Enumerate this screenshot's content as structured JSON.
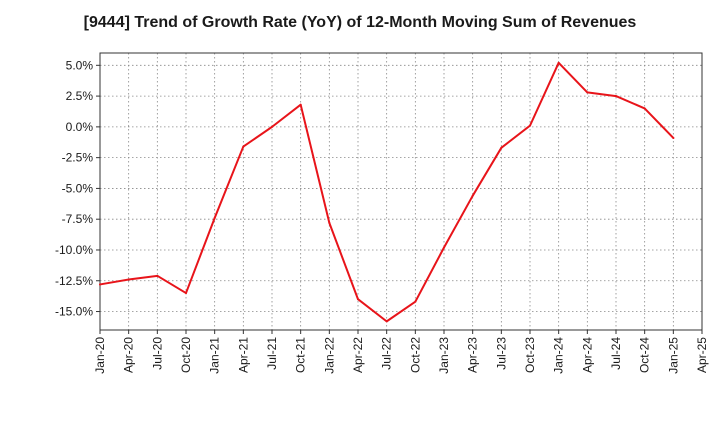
{
  "chart_data": {
    "type": "line",
    "title": "[9444]  Trend of Growth Rate (YoY) of 12-Month Moving Sum of Revenues",
    "xlabel": "",
    "ylabel": "",
    "x_tick_labels": [
      "Jan-20",
      "Apr-20",
      "Jul-20",
      "Oct-20",
      "Jan-21",
      "Apr-21",
      "Jul-21",
      "Oct-21",
      "Jan-22",
      "Apr-22",
      "Jul-22",
      "Oct-22",
      "Jan-23",
      "Apr-23",
      "Jul-23",
      "Oct-23",
      "Jan-24",
      "Apr-24",
      "Jul-24",
      "Oct-24",
      "Jan-25",
      "Apr-25"
    ],
    "y_tick_labels": [
      "5.0%",
      "2.5%",
      "0.0%",
      "-2.5%",
      "-5.0%",
      "-7.5%",
      "-10.0%",
      "-12.5%",
      "-15.0%"
    ],
    "y_ticks": [
      5.0,
      2.5,
      0.0,
      -2.5,
      -5.0,
      -7.5,
      -10.0,
      -12.5,
      -15.0
    ],
    "ylim": [
      -16.5,
      6.0
    ],
    "grid": true,
    "series": [
      {
        "color": "#e8141a",
        "x": [
          "Jan-20",
          "Apr-20",
          "Jul-20",
          "Oct-20",
          "Jan-21",
          "Apr-21",
          "Jul-21",
          "Oct-21",
          "Jan-22",
          "Apr-22",
          "Jul-22",
          "Oct-22",
          "Jan-23",
          "Apr-23",
          "Jul-23",
          "Oct-23",
          "Jan-24",
          "Apr-24",
          "Jul-24",
          "Oct-24",
          "Jan-25"
        ],
        "values": [
          -12.8,
          -12.4,
          -12.1,
          -13.5,
          -7.4,
          -1.6,
          0.0,
          1.8,
          -7.8,
          -14.0,
          -15.8,
          -14.2,
          -9.8,
          -5.6,
          -1.7,
          0.1,
          5.2,
          2.8,
          2.5,
          1.5,
          -0.9
        ]
      }
    ]
  }
}
